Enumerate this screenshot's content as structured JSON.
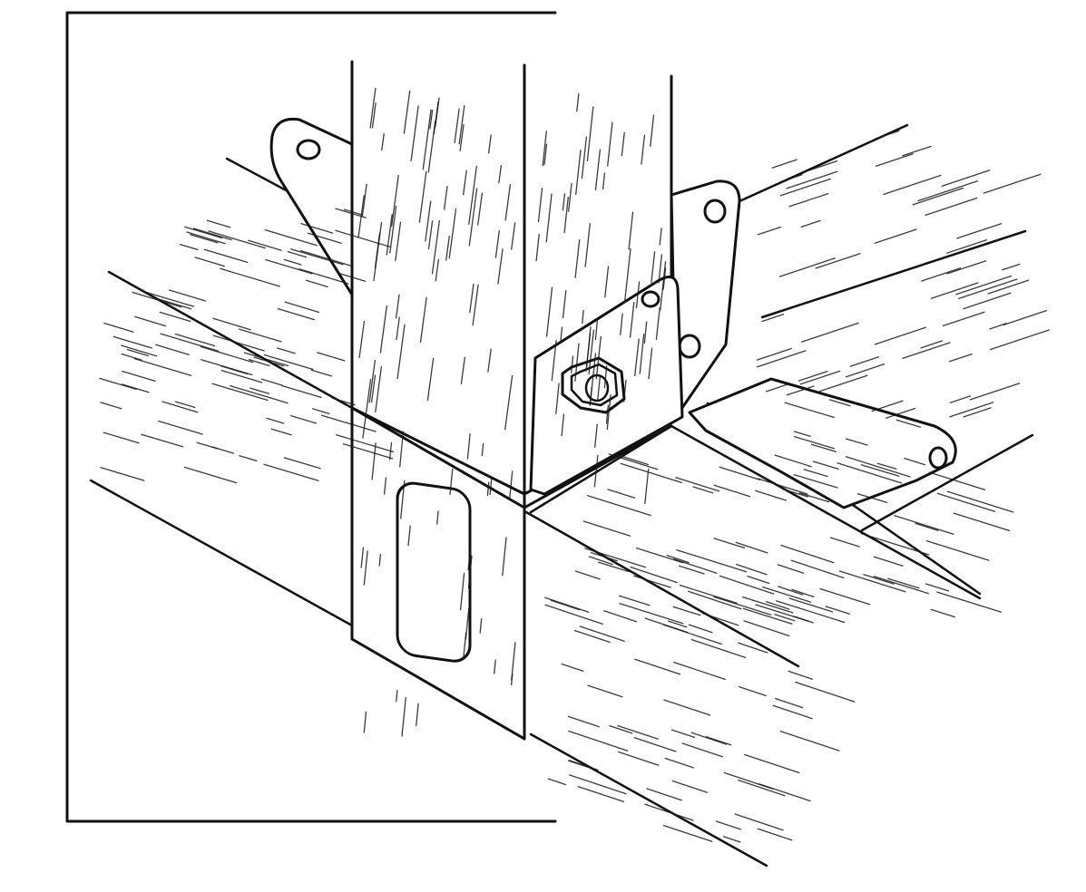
{
  "figure": {
    "kind": "line-drawing",
    "subject": "wooden-post-beam-joint-with-metal-brackets",
    "ink_color": "#111111",
    "paper_color": "#ffffff",
    "icons": [
      "hex-bolt-icon",
      "bolt-hole-icon"
    ]
  }
}
